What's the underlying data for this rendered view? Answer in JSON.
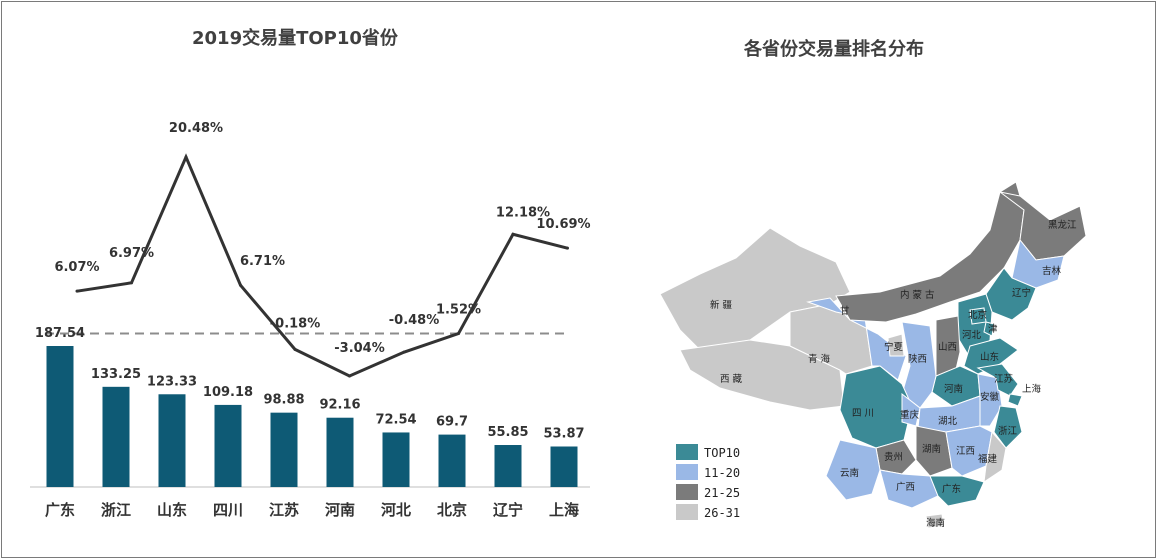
{
  "left_chart_title": "2019交易量TOP10省份",
  "right_chart_title": "各省份交易量排名分布",
  "chart_data": [
    {
      "type": "bar",
      "title": "2019交易量TOP10省份",
      "categories": [
        "广东",
        "浙江",
        "山东",
        "四川",
        "江苏",
        "河南",
        "河北",
        "北京",
        "辽宁",
        "上海"
      ],
      "series": [
        {
          "values": [
            187.54,
            133.25,
            123.33,
            109.18,
            98.88,
            92.16,
            72.54,
            69.7,
            55.85,
            53.87
          ]
        }
      ],
      "value_labels": [
        "187.54",
        "133.25",
        "123.33",
        "109.18",
        "98.88",
        "92.16",
        "72.54",
        "69.7",
        "55.85",
        "53.87"
      ],
      "bar_color": "#0e5a75",
      "ylim": [
        0,
        200
      ]
    },
    {
      "type": "line",
      "categories": [
        "广东",
        "浙江",
        "山东",
        "四川",
        "江苏",
        "河南",
        "河北",
        "北京",
        "辽宁",
        "上海"
      ],
      "series": [
        {
          "values": [
            6.07,
            6.97,
            20.48,
            6.71,
            -0.18,
            -3.04,
            -0.48,
            1.52,
            12.18,
            10.69
          ]
        }
      ],
      "value_labels": [
        "6.07%",
        "6.97%",
        "20.48%",
        "6.71%",
        "-0.18%",
        "-3.04%",
        "-0.48%",
        "1.52%",
        "12.18%",
        "10.69%"
      ],
      "reference_line": 1.52,
      "line_color": "#333333",
      "ylim": [
        -3.04,
        20.48
      ]
    }
  ],
  "map": {
    "colors": {
      "TOP10": "#3b8a96",
      "11-20": "#9ab8e6",
      "21-25": "#7b7b7b",
      "26-31": "#c9c9c9"
    },
    "legend": [
      {
        "key": "TOP10",
        "label": "TOP10"
      },
      {
        "key": "11-20",
        "label": "11-20"
      },
      {
        "key": "21-25",
        "label": "21-25"
      },
      {
        "key": "26-31",
        "label": "26-31"
      }
    ],
    "labels": {
      "xinjiang": "新 疆",
      "xizang": "西 藏",
      "qinghai": "青 海",
      "gansu": "甘",
      "neimenggu": "内 蒙 古",
      "heilongjiang": "黑龙江",
      "jilin": "吉林",
      "liaoning": "辽宁",
      "hebei": "河北",
      "beijing": "北京",
      "tianjin": "津",
      "shanxi": "山西",
      "shandong": "山东",
      "henan": "河南",
      "shaanxi": "陕西",
      "ningxia": "宁夏",
      "sichuan": "四 川",
      "chongqing": "重庆",
      "hubei": "湖北",
      "anhui": "安徽",
      "jiangsu": "江苏",
      "shanghai": "上海",
      "zhejiang": "浙江",
      "hunan": "湖南",
      "jiangxi": "江西",
      "fujian": "福建",
      "guizhou": "贵州",
      "yunnan": "云南",
      "guangxi": "广西",
      "guangdong": "广东",
      "hainan": "海南"
    }
  }
}
